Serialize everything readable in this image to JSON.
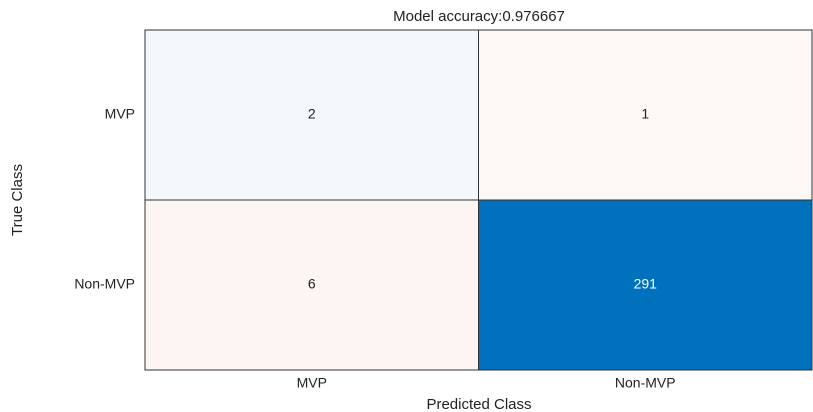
{
  "chart_data": {
    "type": "confusion_matrix",
    "title": "Model accuracy:0.976667",
    "xlabel": "Predicted Class",
    "ylabel": "True Class",
    "categories": [
      "MVP",
      "Non-MVP"
    ],
    "values": [
      [
        2,
        1
      ],
      [
        6,
        291
      ]
    ],
    "diagonal_color": "#0072bd",
    "off_diagonal_color": "#d95319"
  }
}
